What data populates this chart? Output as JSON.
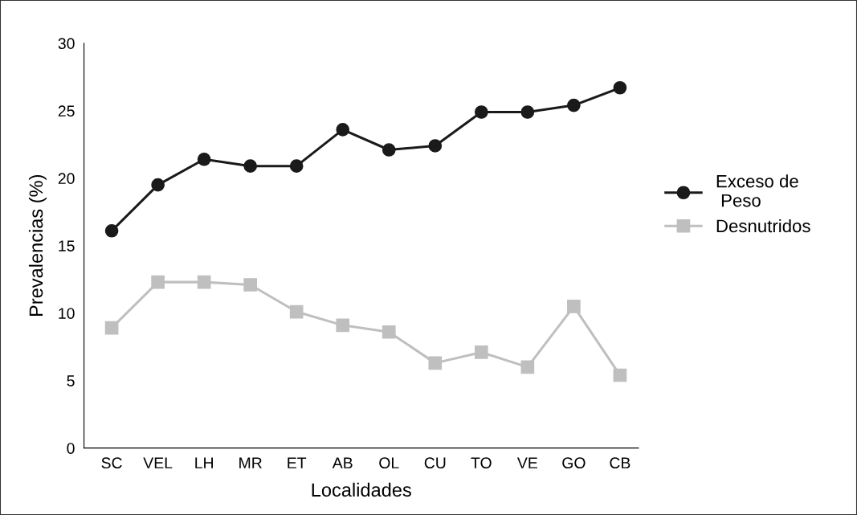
{
  "chart_data": {
    "type": "line",
    "xlabel": "Localidades",
    "ylabel": "Prevalencias (%)",
    "categories": [
      "SC",
      "VEL",
      "LH",
      "MR",
      "ET",
      "AB",
      "OL",
      "CU",
      "TO",
      "VE",
      "GO",
      "CB"
    ],
    "series": [
      {
        "name": "Exceso de\n Peso",
        "color": "#1a1a1a",
        "marker": "circle",
        "values": [
          16.1,
          19.5,
          21.4,
          20.9,
          20.9,
          23.6,
          22.1,
          22.4,
          24.9,
          24.9,
          25.4,
          26.7
        ]
      },
      {
        "name": "Desnutridos",
        "color": "#bfbfbf",
        "marker": "square",
        "values": [
          8.9,
          12.3,
          12.3,
          12.1,
          10.1,
          9.1,
          8.6,
          6.3,
          7.1,
          6.0,
          10.5,
          5.4
        ]
      }
    ],
    "ylim": [
      0,
      30
    ],
    "yticks": [
      0,
      5,
      10,
      15,
      20,
      25,
      30
    ],
    "grid": false,
    "legend": "right",
    "line_style": "solid"
  }
}
